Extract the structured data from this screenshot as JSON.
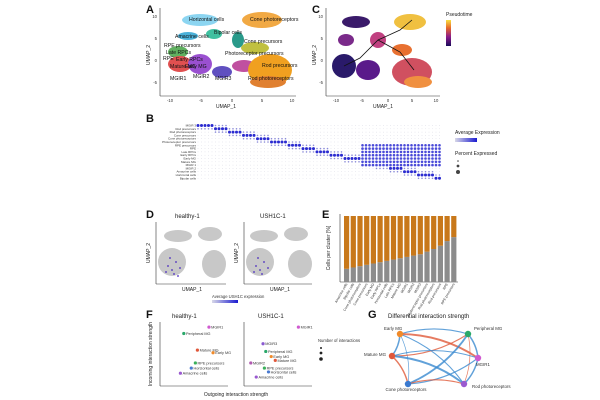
{
  "panels": {
    "A": {
      "label": "A",
      "xlabel": "UMAP_1",
      "ylabel": "UMAP_2",
      "x_ticks": [
        "-10",
        "-5",
        "0",
        "5",
        "10"
      ],
      "y_ticks": [
        "10",
        "5",
        "0",
        "-5"
      ],
      "clusters": [
        "Horizontal cells",
        "Cone photoreceptors",
        "Amacrine cells",
        "Bipolar cells",
        "Cone precursors",
        "RPE precursors",
        "Late RPCs",
        "Photoreceptor precursors",
        "RPE",
        "Early RPCs",
        "Early MG",
        "Rod precursors",
        "Mature MG",
        "MGIR1",
        "MGIR2",
        "MGIR3",
        "Rod photoreceptors"
      ]
    },
    "B": {
      "label": "B",
      "legend_expr_title": "Average Expression",
      "legend_pct_title": "Percent Expressed",
      "rows": [
        "MGIR 3",
        "Rod precursors",
        "Rod photoreceptors",
        "Cone precursors",
        "Cone photoreceptors",
        "Photoreceptor precursors",
        "RPE precursors",
        "RPE",
        "Late RPCs",
        "Early RPCs",
        "Early MG",
        "Mature MG",
        "MGIR 1",
        "MGIR 2",
        "Amacrine cells",
        "Horizontal cells",
        "Bipolar cells"
      ]
    },
    "C": {
      "label": "C",
      "xlabel": "UMAP_1",
      "ylabel": "UMAP_2",
      "legend_title": "Pseudotime",
      "x_ticks": [
        "-10",
        "-5",
        "0",
        "5",
        "10"
      ],
      "y_ticks": [
        "10",
        "5",
        "0",
        "-5"
      ]
    },
    "D": {
      "label": "D",
      "plots": [
        {
          "title": "healthy-1",
          "xlabel": "UMAP_1",
          "ylabel": "UMAP_2"
        },
        {
          "title": "USH1C-1",
          "xlabel": "UMAP_1",
          "ylabel": "UMAP_2"
        }
      ],
      "caption": "Average USH1C expression"
    },
    "E": {
      "label": "E",
      "ylabel": "Cells per cluster [%]",
      "colors": {
        "top": "#c8781a",
        "bottom": "#8c8c8c"
      },
      "categories": [
        "Amacrine cells",
        "Bipolar cells",
        "Cone photoreceptors",
        "Cone precursors",
        "Early MG",
        "Early RPCs",
        "Horizontal cells",
        "Late RPCs",
        "Mature MG",
        "MGIR1",
        "MGIR2",
        "MGIR3",
        "Photoreceptor precursors",
        "Rod photoreceptors",
        "Rod precursors",
        "RPE",
        "RPE precursors"
      ]
    },
    "F": {
      "label": "F",
      "xlabel": "Outgoing interaction strength",
      "ylabel": "Incoming interaction strength",
      "legend_title": "Number of interactions",
      "plots": [
        {
          "title": "healthy-1",
          "points": [
            "MGIR1",
            "Peripheral MG",
            "Mature MG",
            "Early MG",
            "RPE precursors",
            "Horizontal cells",
            "Amacrine cells"
          ]
        },
        {
          "title": "USH1C-1",
          "points": [
            "MGIR1",
            "MGIR3",
            "Peripheral MG",
            "Early MG",
            "Mature MG",
            "MGIR2",
            "RPE precursors",
            "Horizontal cells",
            "Amacrine cells"
          ]
        }
      ]
    },
    "G": {
      "label": "G",
      "title": "Differential interaction strength",
      "nodes": [
        "Early MG",
        "Peripheral MG",
        "Mature MG",
        "MGIR1",
        "Cone photoreceptors",
        "Rod photoreceptors"
      ]
    }
  },
  "chart_data": [
    {
      "type": "bar",
      "title": "",
      "xlabel": "",
      "ylabel": "Cells per cluster [%]",
      "ylim": [
        0,
        100
      ],
      "stacked": true,
      "categories": [
        "Amacrine cells",
        "Bipolar cells",
        "Cone photoreceptors",
        "Cone precursors",
        "Early MG",
        "Early RPCs",
        "Horizontal cells",
        "Late RPCs",
        "Mature MG",
        "MGIR1",
        "MGIR2",
        "MGIR3",
        "Photoreceptor precursors",
        "Rod photoreceptors",
        "Rod precursors",
        "RPE",
        "RPE precursors"
      ],
      "series": [
        {
          "values": [
            20,
            22,
            24,
            26,
            28,
            30,
            32,
            34,
            36,
            38,
            40,
            42,
            46,
            50,
            55,
            62,
            68
          ]
        },
        {
          "values": [
            80,
            78,
            76,
            74,
            72,
            70,
            68,
            66,
            64,
            62,
            60,
            58,
            54,
            50,
            45,
            38,
            32
          ]
        }
      ]
    },
    {
      "type": "scatter",
      "title": "healthy-1",
      "xlabel": "Outgoing interaction strength",
      "ylabel": "Incoming interaction strength",
      "points": [
        {
          "label": "MGIR1",
          "x": 0.72,
          "y": 0.92,
          "color": "#d05ad0"
        },
        {
          "label": "Peripheral MG",
          "x": 0.35,
          "y": 0.82,
          "color": "#2aa86a"
        },
        {
          "label": "Mature MG",
          "x": 0.55,
          "y": 0.56,
          "color": "#e0573a"
        },
        {
          "label": "Early MG",
          "x": 0.78,
          "y": 0.52,
          "color": "#f08a2a"
        },
        {
          "label": "RPE precursors",
          "x": 0.52,
          "y": 0.36,
          "color": "#3ab05a"
        },
        {
          "label": "Horizontal cells",
          "x": 0.46,
          "y": 0.28,
          "color": "#4a7ad0"
        },
        {
          "label": "Amacrine cells",
          "x": 0.3,
          "y": 0.2,
          "color": "#9a5ad0"
        }
      ]
    },
    {
      "type": "scatter",
      "title": "USH1C-1",
      "xlabel": "Outgoing interaction strength",
      "ylabel": "Incoming interaction strength",
      "points": [
        {
          "label": "MGIR1",
          "x": 0.8,
          "y": 0.92,
          "color": "#d05ad0"
        },
        {
          "label": "MGIR3",
          "x": 0.28,
          "y": 0.66,
          "color": "#8a5ad0"
        },
        {
          "label": "Peripheral MG",
          "x": 0.32,
          "y": 0.54,
          "color": "#2aa86a"
        },
        {
          "label": "Early MG",
          "x": 0.4,
          "y": 0.46,
          "color": "#f08a2a"
        },
        {
          "label": "Mature MG",
          "x": 0.46,
          "y": 0.4,
          "color": "#e0573a"
        },
        {
          "label": "MGIR2",
          "x": 0.1,
          "y": 0.36,
          "color": "#b05ab0"
        },
        {
          "label": "RPE precursors",
          "x": 0.3,
          "y": 0.28,
          "color": "#3ab05a"
        },
        {
          "label": "Horizontal cells",
          "x": 0.36,
          "y": 0.22,
          "color": "#4a7ad0"
        },
        {
          "label": "Amacrine cells",
          "x": 0.18,
          "y": 0.14,
          "color": "#9a5ad0"
        }
      ]
    }
  ]
}
